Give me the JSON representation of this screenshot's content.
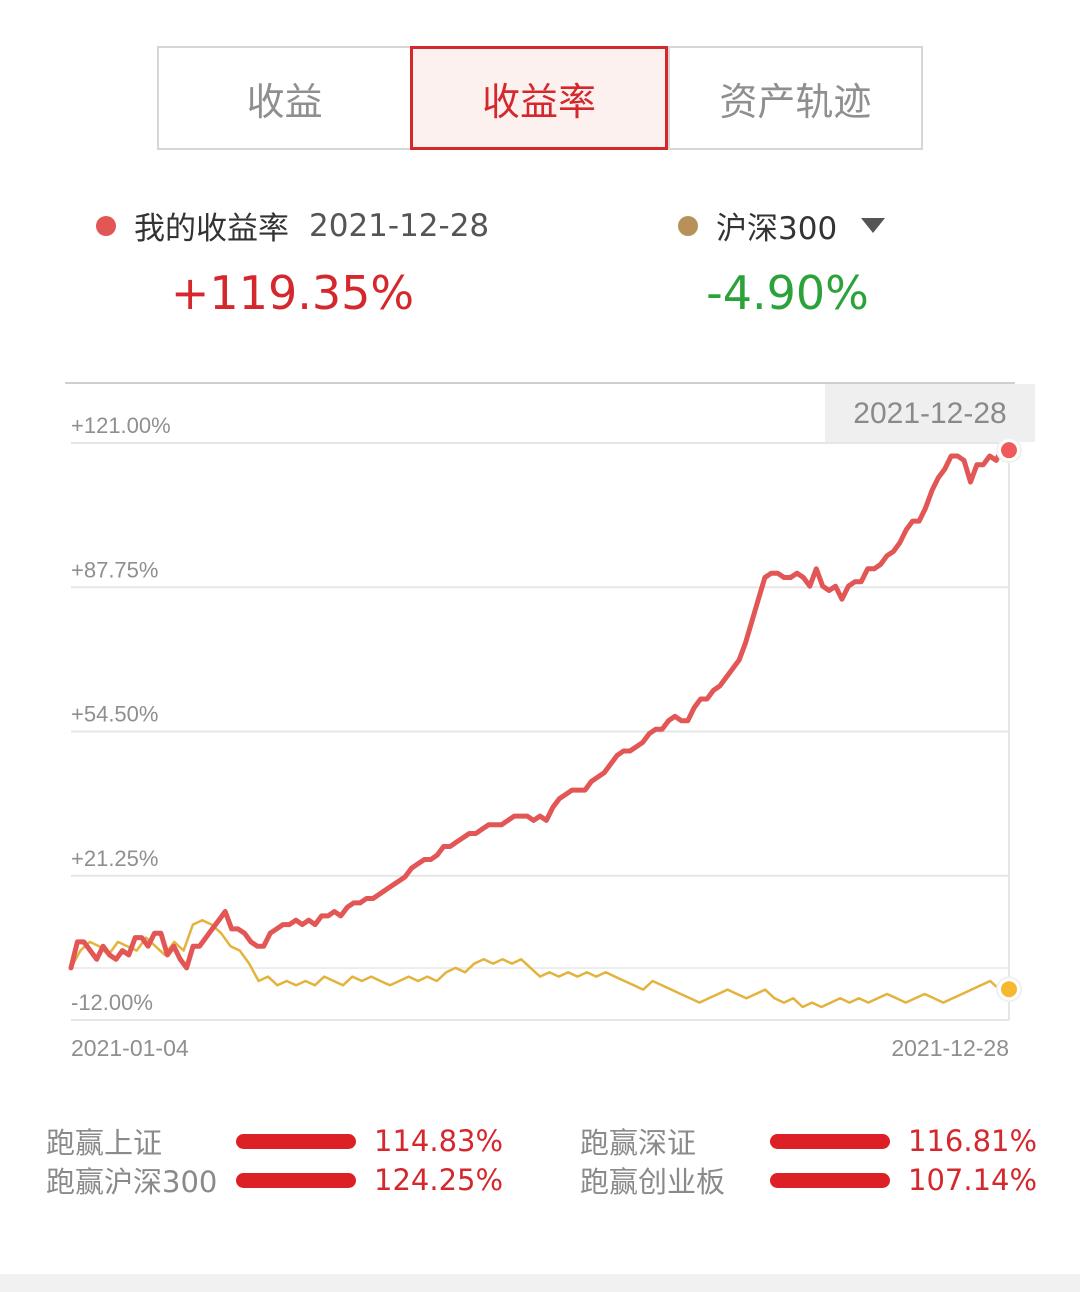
{
  "tabs": [
    {
      "label": "收益",
      "active": false
    },
    {
      "label": "收益率",
      "active": true
    },
    {
      "label": "资产轨迹",
      "active": false
    }
  ],
  "legend": {
    "mine": {
      "label": "我的收益率",
      "date": "2021-12-28",
      "value": "+119.35%",
      "dot_color": "#e25656",
      "value_color": "#d4282d"
    },
    "index": {
      "label": "沪深300",
      "value": "-4.90%",
      "dot_color": "#b8915a",
      "value_color": "#2ba23a",
      "dropdown_icon": "caret-down-icon"
    }
  },
  "chart_data": {
    "type": "line",
    "y_ticks": [
      "+121.00%",
      "+87.75%",
      "+54.50%",
      "+21.25%",
      "-12.00%"
    ],
    "y_tick_values": [
      121.0,
      87.75,
      54.5,
      21.25,
      -12.0
    ],
    "ylim": [
      -12.0,
      121.0
    ],
    "x_start_label": "2021-01-04",
    "x_end_label": "2021-12-28",
    "tooltip_date": "2021-12-28",
    "grid": true,
    "series": [
      {
        "name": "我的收益率",
        "color": "#e25656",
        "values": [
          0,
          6,
          6,
          4,
          2,
          5,
          3,
          2,
          4,
          3,
          7,
          7,
          5,
          8,
          8,
          3,
          5,
          2,
          0,
          5,
          5,
          7,
          9,
          11,
          13,
          9,
          9,
          8,
          6,
          5,
          5,
          8,
          9,
          10,
          10,
          11,
          10,
          11,
          10,
          12,
          12,
          13,
          12,
          14,
          15,
          15,
          16,
          16,
          17,
          18,
          19,
          20,
          21,
          23,
          24,
          25,
          25,
          26,
          28,
          28,
          29,
          30,
          31,
          31,
          32,
          33,
          33,
          33,
          34,
          35,
          35,
          35,
          34,
          35,
          34,
          37,
          39,
          40,
          41,
          41,
          41,
          43,
          44,
          45,
          47,
          49,
          50,
          50,
          51,
          52,
          54,
          55,
          55,
          57,
          58,
          57,
          57,
          60,
          62,
          62,
          64,
          65,
          67,
          69,
          71,
          75,
          80,
          85,
          90,
          91,
          91,
          90,
          90,
          91,
          90,
          88,
          92,
          88,
          87,
          88,
          85,
          88,
          89,
          89,
          92,
          92,
          93,
          95,
          96,
          98,
          101,
          103,
          103,
          106,
          110,
          113,
          115,
          118,
          118,
          117,
          112,
          116,
          116,
          118,
          117,
          120,
          119.35
        ],
        "end_marker": true
      },
      {
        "name": "沪深300",
        "color": "#e3b33c",
        "values": [
          0,
          4,
          6,
          5,
          3,
          6,
          5,
          4,
          7,
          5,
          3,
          6,
          4,
          10,
          11,
          10,
          8,
          5,
          4,
          1,
          -3,
          -2,
          -4,
          -3,
          -4,
          -3,
          -4,
          -2,
          -3,
          -4,
          -2,
          -3,
          -2,
          -3,
          -4,
          -3,
          -2,
          -3,
          -2,
          -3,
          -1,
          0,
          -1,
          1,
          2,
          1,
          2,
          1,
          2,
          0,
          -2,
          -1,
          -2,
          -1,
          -2,
          -1,
          -2,
          -1,
          -2,
          -3,
          -4,
          -5,
          -3,
          -4,
          -5,
          -6,
          -7,
          -8,
          -7,
          -6,
          -5,
          -6,
          -7,
          -6,
          -5,
          -7,
          -8,
          -7,
          -9,
          -8,
          -9,
          -8,
          -7,
          -8,
          -7,
          -8,
          -7,
          -6,
          -7,
          -8,
          -7,
          -6,
          -7,
          -8,
          -7,
          -6,
          -5,
          -4,
          -3,
          -5,
          -4.9
        ],
        "end_marker": true
      }
    ]
  },
  "stats": [
    {
      "label": "跑赢上证",
      "value": "114.83%"
    },
    {
      "label": "跑赢深证",
      "value": "116.81%"
    },
    {
      "label": "跑赢沪深300",
      "value": "124.25%"
    },
    {
      "label": "跑赢创业板",
      "value": "107.14%"
    }
  ]
}
